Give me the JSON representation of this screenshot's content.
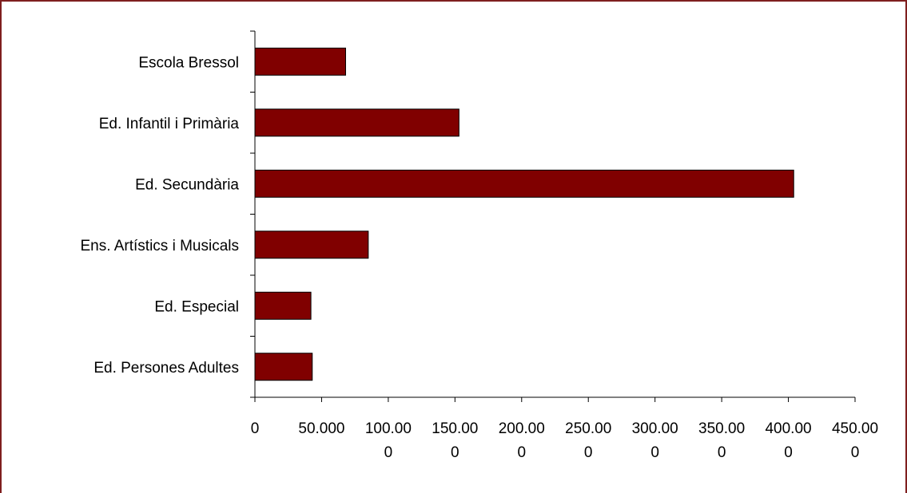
{
  "chart_data": {
    "type": "bar",
    "orientation": "horizontal",
    "categories": [
      "Escola Bressol",
      "Ed. Infantil i Primària",
      "Ed. Secundària",
      "Ens. Artístics i Musicals",
      "Ed. Especial",
      "Ed. Persones Adultes"
    ],
    "values": [
      68000,
      153000,
      404000,
      85000,
      42000,
      43000
    ],
    "bar_color": "#800000",
    "xlim": [
      0,
      450000
    ],
    "xticks": [
      {
        "value": 0,
        "line1": "0",
        "line2": ""
      },
      {
        "value": 50000,
        "line1": "50.000",
        "line2": ""
      },
      {
        "value": 100000,
        "line1": "100.00",
        "line2": "0"
      },
      {
        "value": 150000,
        "line1": "150.00",
        "line2": "0"
      },
      {
        "value": 200000,
        "line1": "200.00",
        "line2": "0"
      },
      {
        "value": 250000,
        "line1": "250.00",
        "line2": "0"
      },
      {
        "value": 300000,
        "line1": "300.00",
        "line2": "0"
      },
      {
        "value": 350000,
        "line1": "350.00",
        "line2": "0"
      },
      {
        "value": 400000,
        "line1": "400.00",
        "line2": "0"
      },
      {
        "value": 450000,
        "line1": "450.00",
        "line2": "0"
      }
    ],
    "title": "",
    "xlabel": "",
    "ylabel": "",
    "grid": false
  }
}
